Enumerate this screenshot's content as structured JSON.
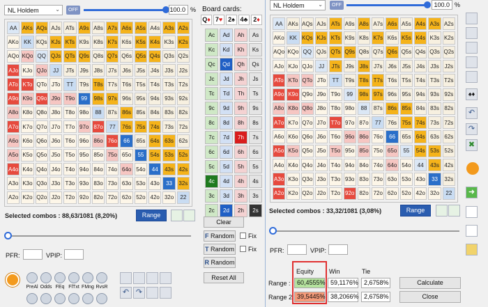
{
  "left": {
    "game": "NL Holdem",
    "off_label": "OFF",
    "pct_value": "100.0",
    "pct_unit": "%",
    "slider_level": 1.0,
    "selected_label": "Selected combos : 88,63/1081 (8,20%)",
    "range_btn": "Range",
    "pfr_label": "PFR:",
    "vpip_label": "VPIP:",
    "stats": [
      "PreAl",
      "Odds",
      "FEq",
      "FlTxt",
      "FMng",
      "RvsR"
    ]
  },
  "right": {
    "game": "NL Holdem",
    "off_label": "OFF",
    "pct_value": "100.0",
    "pct_unit": "%",
    "selected_label": "Selected combos : 33,32/1081 (3,08%)",
    "range_btn": "Range",
    "pfr_label": "PFR:",
    "vpip_label": "VPIP:",
    "equity_header": "Equity",
    "win_header": "Win",
    "tie_header": "Tie",
    "range1_label": "Range :",
    "range2_label": "Range 2 :",
    "range1_equity": "60,4555%",
    "range1_win": "59,1176%",
    "range1_tie": "2,6758%",
    "range2_equity": "39,5445%",
    "range2_win": "38,2066%",
    "range2_tie": "2,6758%",
    "calculate_btn": "Calculate",
    "close_btn": "Close"
  },
  "board": {
    "title": "Board cards:",
    "selected": [
      "Q",
      "7",
      "2",
      "4",
      "2"
    ],
    "selected_suits": [
      "♦",
      "♥",
      "♠",
      "♣",
      "♦"
    ],
    "clear": "Clear",
    "random": "Random",
    "fix": "Fix",
    "reset": "Reset All",
    "rows": [
      [
        "Ac",
        "Ad",
        "Ah",
        "As"
      ],
      [
        "Kc",
        "Kd",
        "Kh",
        "Ks"
      ],
      [
        "Qc",
        "Qd",
        "Qh",
        "Qs"
      ],
      [
        "Jc",
        "Jd",
        "Jh",
        "Js"
      ],
      [
        "Tc",
        "Td",
        "Th",
        "Ts"
      ],
      [
        "9c",
        "9d",
        "9h",
        "9s"
      ],
      [
        "8c",
        "8d",
        "8h",
        "8s"
      ],
      [
        "7c",
        "7d",
        "7h",
        "7s"
      ],
      [
        "6c",
        "6d",
        "6h",
        "6s"
      ],
      [
        "5c",
        "5d",
        "5h",
        "5s"
      ],
      [
        "4c",
        "4d",
        "4h",
        "4s"
      ],
      [
        "3c",
        "3d",
        "3h",
        "3s"
      ],
      [
        "2c",
        "2d",
        "2h",
        "2s"
      ]
    ]
  },
  "hands": [
    [
      "AA",
      "AKs",
      "AQs",
      "AJs",
      "ATs",
      "A9s",
      "A8s",
      "A7s",
      "A6s",
      "A5s",
      "A4s",
      "A3s",
      "A2s"
    ],
    [
      "AKo",
      "KK",
      "KQs",
      "KJs",
      "KTs",
      "K9s",
      "K8s",
      "K7s",
      "K6s",
      "K5s",
      "K4s",
      "K3s",
      "K2s"
    ],
    [
      "AQo",
      "KQo",
      "QQ",
      "QJs",
      "QTs",
      "Q9s",
      "Q8s",
      "Q7s",
      "Q6s",
      "Q5s",
      "Q4s",
      "Q3s",
      "Q2s"
    ],
    [
      "AJo",
      "KJo",
      "QJo",
      "JJ",
      "JTs",
      "J9s",
      "J8s",
      "J7s",
      "J6s",
      "J5s",
      "J4s",
      "J3s",
      "J2s"
    ],
    [
      "ATo",
      "KTo",
      "QTo",
      "JTo",
      "TT",
      "T9s",
      "T8s",
      "T7s",
      "T6s",
      "T5s",
      "T4s",
      "T3s",
      "T2s"
    ],
    [
      "A9o",
      "K9o",
      "Q9o",
      "J9o",
      "T9o",
      "99",
      "98s",
      "97s",
      "96s",
      "95s",
      "94s",
      "93s",
      "92s"
    ],
    [
      "A8o",
      "K8o",
      "Q8o",
      "J8o",
      "T8o",
      "98o",
      "88",
      "87s",
      "86s",
      "85s",
      "84s",
      "83s",
      "82s"
    ],
    [
      "A7o",
      "K7o",
      "Q7o",
      "J7o",
      "T7o",
      "97o",
      "87o",
      "77",
      "76s",
      "75s",
      "74s",
      "73s",
      "72s"
    ],
    [
      "A6o",
      "K6o",
      "Q6o",
      "J6o",
      "T6o",
      "96o",
      "86o",
      "76o",
      "66",
      "65s",
      "64s",
      "63s",
      "62s"
    ],
    [
      "A5o",
      "K5o",
      "Q5o",
      "J5o",
      "T5o",
      "95o",
      "85o",
      "75o",
      "65o",
      "55",
      "54s",
      "53s",
      "52s"
    ],
    [
      "A4o",
      "K4o",
      "Q4o",
      "J4o",
      "T4o",
      "94o",
      "84o",
      "74o",
      "64o",
      "54o",
      "44",
      "43s",
      "42s"
    ],
    [
      "A3o",
      "K3o",
      "Q3o",
      "J3o",
      "T3o",
      "93o",
      "83o",
      "73o",
      "63o",
      "53o",
      "43o",
      "33",
      "32s"
    ],
    [
      "A2o",
      "K2o",
      "Q2o",
      "J2o",
      "T2o",
      "92o",
      "82o",
      "72o",
      "62o",
      "52o",
      "42o",
      "32o",
      "22"
    ]
  ],
  "left_colors": {
    "AKs": "c-or",
    "AQs": "c-or",
    "A9s": "c-or",
    "A7s": "c-or",
    "A6s": "c-or",
    "A5s": "c-or",
    "A3s": "c-or",
    "A2s": "c-or",
    "KJs": "c-or",
    "KTs": "c-or",
    "K7s": "c-or",
    "K5s": "c-or",
    "K4s": "c-or",
    "K2s": "c-or",
    "QJs": "c-or",
    "QTs": "c-or",
    "Q9s": "c-or",
    "Q7s": "c-or",
    "Q5s": "c-or",
    "Q4s": "c-or",
    "T8s": "c-or",
    "98s": "c-or",
    "97s": "c-or",
    "86s": "c-or",
    "76s": "c-or",
    "75s": "c-or",
    "64s": "c-or",
    "54s": "c-or",
    "53s": "c-or",
    "32s": "c-or",
    "43s": "c-or",
    "63s": "c-or",
    "52s": "c-or",
    "42s": "c-or",
    "74s": "c-or",
    "AJo": "c-red",
    "ATo": "c-red",
    "KTo": "c-red",
    "A9o": "c-red",
    "Q9o": "c-red",
    "A7o": "c-red",
    "87o": "c-red",
    "76o": "c-red",
    "A4o": "c-red",
    "KQo": "c-pink",
    "QJo": "c-pink",
    "K9o": "c-pink",
    "J9o": "c-pink",
    "T9o": "c-pink",
    "A8o": "c-pink",
    "A6o": "c-pink",
    "A5o": "c-pink",
    "97o": "c-pink",
    "86o": "c-pink",
    "64o": "c-pink",
    "75o": "c-pink",
    "99": "c-blue",
    "66": "c-blue",
    "55": "c-blue",
    "44": "c-blue",
    "33": "c-blue",
    "JJ": "c-lb",
    "TT": "c-lb",
    "KK": "c-lb",
    "77": "c-lb",
    "88": "c-lb",
    "22": "c-lb"
  },
  "right_colors": {
    "ATs": "c-or",
    "A8s": "c-or",
    "A6s": "c-or",
    "A4s": "c-or",
    "A3s": "c-or",
    "KTs": "c-or",
    "K7s": "c-or",
    "K5s": "c-or",
    "K4s": "c-or",
    "QTs": "c-or",
    "Q9s": "c-or",
    "Q6s": "c-or",
    "JTs": "c-or",
    "J8s": "c-or",
    "T8s": "c-or",
    "T7s": "c-or",
    "97s": "c-or",
    "98s": "c-or",
    "86s": "c-or",
    "85s": "c-or",
    "75s": "c-or",
    "74s": "c-or",
    "64s": "c-or",
    "54s": "c-or",
    "53s": "c-or",
    "43s": "c-or",
    "KQs": "c-or",
    "KJs": "c-or",
    "ATo": "c-red",
    "A9o": "c-red",
    "A7o": "c-red",
    "A5o": "c-red",
    "A3o": "c-red",
    "K9o": "c-red",
    "A2o": "c-red",
    "T7o": "c-red",
    "92o": "c-red",
    "KTo": "c-pink",
    "QTo": "c-pink",
    "A8o": "c-pink",
    "K8o": "c-pink",
    "Q8o": "c-pink",
    "96o": "c-pink",
    "86o": "c-pink",
    "65o": "c-pink",
    "T5o": "c-pink",
    "85o": "c-pink",
    "K5o": "c-pink",
    "64o": "c-pink",
    "66": "c-blue",
    "33": "c-blue",
    "KK": "c-lb",
    "77": "c-lb",
    "22": "c-lb",
    "TT": "c-lb"
  }
}
